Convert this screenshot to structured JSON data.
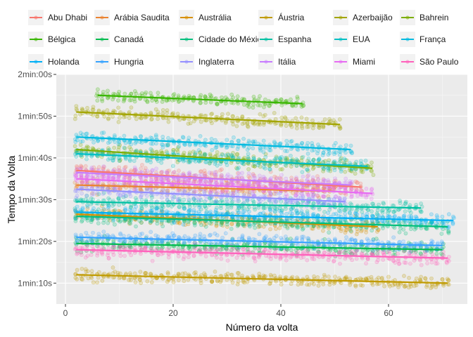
{
  "chart_data": {
    "type": "scatter",
    "xlabel": "Número da volta",
    "ylabel": "Tempo da Volta",
    "xlim": [
      0,
      73
    ],
    "ylim": [
      65,
      120
    ],
    "x_ticks": [
      0,
      20,
      40,
      60
    ],
    "x_tick_labels": [
      "0",
      "20",
      "40",
      "60"
    ],
    "y_ticks": [
      70,
      80,
      90,
      100,
      110,
      120
    ],
    "y_tick_labels": [
      "1min:10s",
      "1min:20s",
      "1min:30s",
      "1min:40s",
      "1min:50s",
      "2min:00s"
    ],
    "grid": true,
    "legend_position": "top",
    "trend_lines": true,
    "series": [
      {
        "name": "Abu Dhabi",
        "color": "#F8766D",
        "x_range": [
          2,
          55
        ],
        "y_start": 97,
        "y_end": 93,
        "spread": 3.5
      },
      {
        "name": "Arábia Saudita",
        "color": "#EA8331",
        "x_range": [
          2,
          50
        ],
        "y_start": 93.5,
        "y_end": 92,
        "spread": 3
      },
      {
        "name": "Austrália",
        "color": "#D89000",
        "x_range": [
          2,
          58
        ],
        "y_start": 86.5,
        "y_end": 83.5,
        "spread": 3
      },
      {
        "name": "Áustria",
        "color": "#C09B00",
        "x_range": [
          2,
          71
        ],
        "y_start": 72,
        "y_end": 70,
        "spread": 2.5
      },
      {
        "name": "Azerbaijão",
        "color": "#A3A500",
        "x_range": [
          2,
          51
        ],
        "y_start": 111,
        "y_end": 108,
        "spread": 2.5
      },
      {
        "name": "Bahrein",
        "color": "#7CAE00",
        "x_range": [
          2,
          57
        ],
        "y_start": 102,
        "y_end": 97.5,
        "spread": 3
      },
      {
        "name": "Bélgica",
        "color": "#39B600",
        "x_range": [
          6,
          44
        ],
        "y_start": 115,
        "y_end": 113,
        "spread": 2.5
      },
      {
        "name": "Canadá",
        "color": "#00BB4E",
        "x_range": [
          2,
          70
        ],
        "y_start": 79.5,
        "y_end": 78,
        "spread": 3
      },
      {
        "name": "Cidade do México",
        "color": "#00BF7D",
        "x_range": [
          2,
          71
        ],
        "y_start": 86,
        "y_end": 83.5,
        "spread": 3
      },
      {
        "name": "Espanha",
        "color": "#00C1A3",
        "x_range": [
          2,
          66
        ],
        "y_start": 89.5,
        "y_end": 88,
        "spread": 3
      },
      {
        "name": "EUA",
        "color": "#00BFC4",
        "x_range": [
          2,
          56
        ],
        "y_start": 101,
        "y_end": 98,
        "spread": 3
      },
      {
        "name": "França",
        "color": "#00BAE0",
        "x_range": [
          2,
          53
        ],
        "y_start": 105,
        "y_end": 102,
        "spread": 2.5
      },
      {
        "name": "Holanda",
        "color": "#00B0F6",
        "x_range": [
          2,
          72
        ],
        "y_start": 87,
        "y_end": 85,
        "spread": 3
      },
      {
        "name": "Hungria",
        "color": "#35A2FF",
        "x_range": [
          2,
          70
        ],
        "y_start": 81,
        "y_end": 79,
        "spread": 3
      },
      {
        "name": "Inglaterra",
        "color": "#9590FF",
        "x_range": [
          2,
          52
        ],
        "y_start": 92.5,
        "y_end": 89.5,
        "spread": 3
      },
      {
        "name": "Itália",
        "color": "#C77CFF",
        "x_range": [
          2,
          53
        ],
        "y_start": 96.5,
        "y_end": 93.5,
        "spread": 3
      },
      {
        "name": "Miami",
        "color": "#E76BF3",
        "x_range": [
          2,
          57
        ],
        "y_start": 95,
        "y_end": 91.5,
        "spread": 3
      },
      {
        "name": "São Paulo",
        "color": "#FF62BC",
        "x_range": [
          2,
          71
        ],
        "y_start": 78,
        "y_end": 76,
        "spread": 3
      }
    ]
  }
}
